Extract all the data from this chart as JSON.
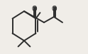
{
  "bg_color": "#f0ede8",
  "line_color": "#2d2d2d",
  "line_width": 1.4,
  "figsize": [
    1.24,
    0.77
  ],
  "dpi": 100
}
